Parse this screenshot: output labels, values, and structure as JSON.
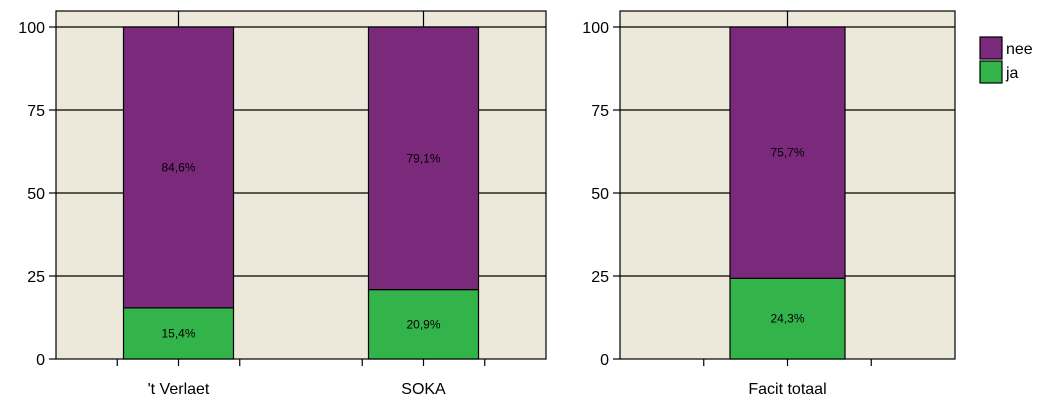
{
  "chart_data": [
    {
      "type": "bar",
      "stacked": true,
      "categories": [
        "'t Verlaet",
        "SOKA"
      ],
      "series": [
        {
          "name": "ja",
          "values": [
            15.4,
            20.9
          ],
          "labels": [
            "15,4%",
            "20,9%"
          ]
        },
        {
          "name": "nee",
          "values": [
            84.6,
            79.1
          ],
          "labels": [
            "84,6%",
            "79,1%"
          ]
        }
      ],
      "yticks": [
        "0",
        "25",
        "50",
        "75",
        "100"
      ],
      "ylim": [
        0,
        100
      ],
      "grid": true
    },
    {
      "type": "bar",
      "stacked": true,
      "categories": [
        "Facit totaal"
      ],
      "series": [
        {
          "name": "ja",
          "values": [
            24.3
          ],
          "labels": [
            "24,3%"
          ]
        },
        {
          "name": "nee",
          "values": [
            75.7
          ],
          "labels": [
            "75,7%"
          ]
        }
      ],
      "yticks": [
        "0",
        "25",
        "50",
        "75",
        "100"
      ],
      "ylim": [
        0,
        100
      ],
      "grid": true
    }
  ],
  "legend": {
    "position": "top-right",
    "items": [
      {
        "name": "nee",
        "color": "#7b2a7b"
      },
      {
        "name": "ja",
        "color": "#33b44a"
      }
    ]
  },
  "colors": {
    "plot_bg": "#ece8da",
    "nee": "#7b2a7b",
    "ja": "#33b44a",
    "grid": "#000000"
  }
}
